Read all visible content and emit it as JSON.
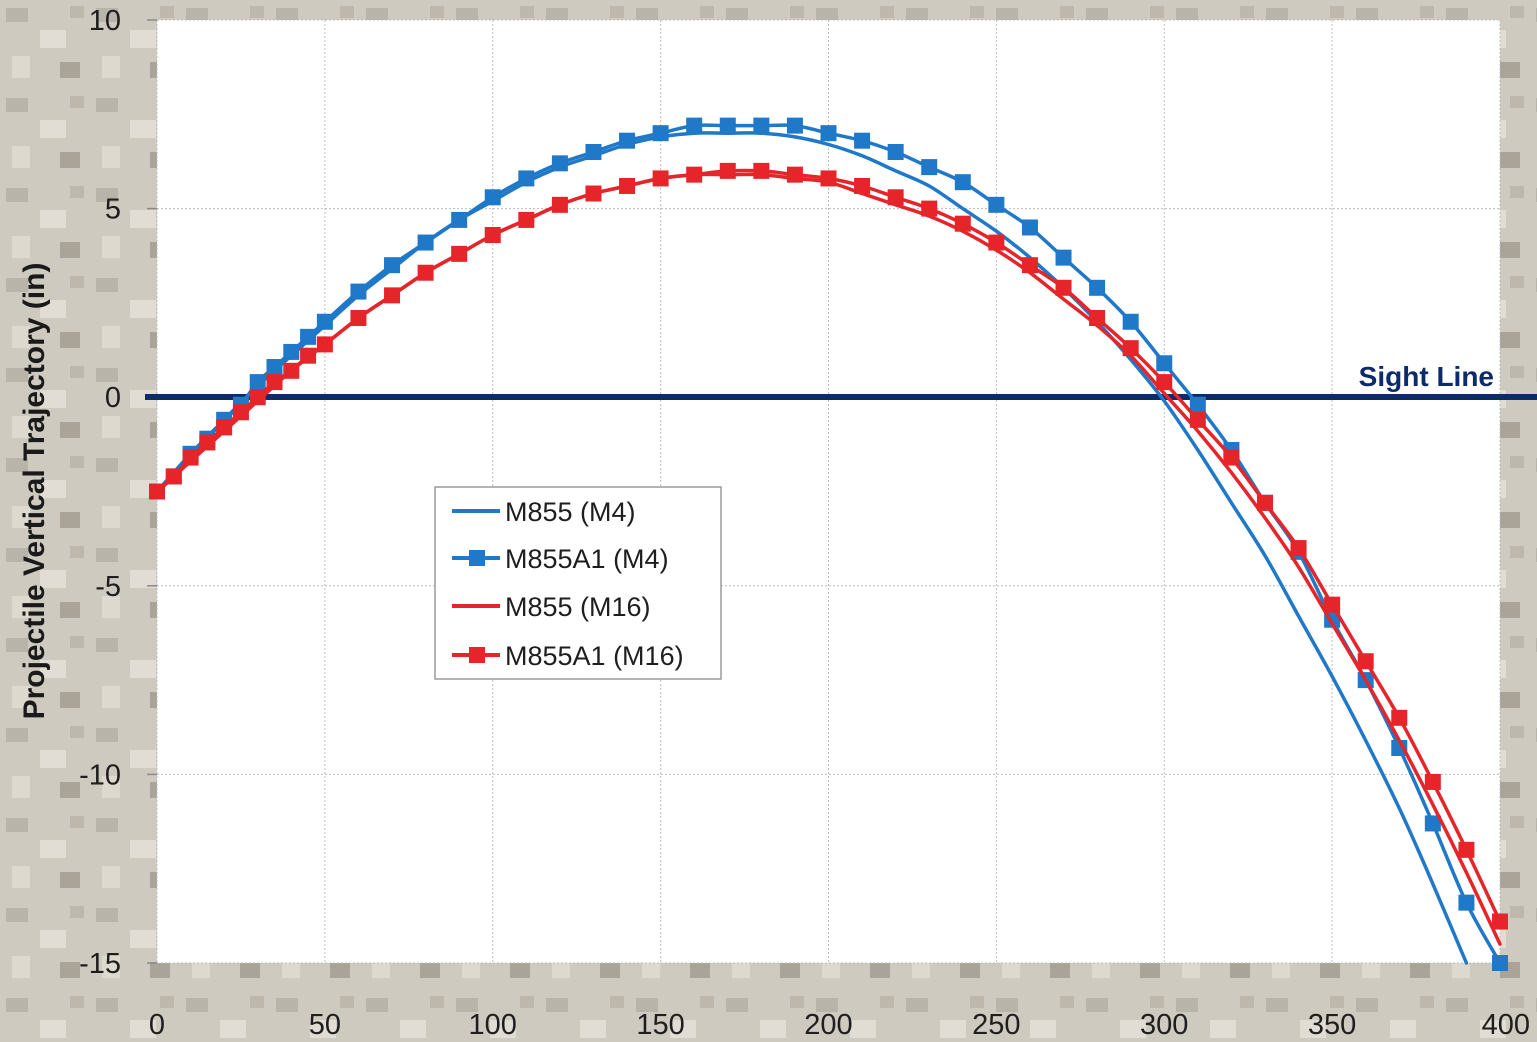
{
  "chart_data": {
    "type": "line",
    "ylabel": "Projectile Vertical Trajectory (in)",
    "xlabel": "",
    "xlim": [
      0,
      400
    ],
    "ylim": [
      -15,
      10
    ],
    "x_ticks": [
      "0",
      "50",
      "100",
      "150",
      "200",
      "250",
      "300",
      "350",
      "400"
    ],
    "y_ticks": [
      "10",
      "5",
      "0",
      "-5",
      "-10",
      "-15"
    ],
    "grid": true,
    "legend_position": "center-left",
    "annotation": {
      "text": "Sight Line",
      "y": 0
    },
    "series": [
      {
        "name": "M855 (M4)",
        "color": "#1f78c8",
        "markers": false,
        "x": [
          0,
          10,
          20,
          30,
          40,
          50,
          60,
          70,
          80,
          90,
          100,
          110,
          120,
          130,
          140,
          150,
          160,
          170,
          180,
          190,
          200,
          210,
          220,
          230,
          240,
          250,
          260,
          270,
          280,
          290,
          300,
          310,
          320,
          330,
          340,
          350,
          360,
          370,
          380,
          390
        ],
        "y": [
          -2.5,
          -1.5,
          -0.6,
          0.3,
          1.1,
          1.9,
          2.7,
          3.4,
          4.1,
          4.7,
          5.2,
          5.7,
          6.1,
          6.4,
          6.7,
          6.9,
          7.0,
          7.0,
          7.0,
          6.9,
          6.7,
          6.4,
          6.0,
          5.6,
          5.0,
          4.4,
          3.7,
          2.9,
          2.0,
          1.0,
          -0.1,
          -1.4,
          -2.8,
          -4.2,
          -5.8,
          -7.4,
          -9.1,
          -10.9,
          -12.9,
          -15.0
        ]
      },
      {
        "name": "M855A1 (M4)",
        "color": "#1f78c8",
        "markers": true,
        "x": [
          0,
          5,
          10,
          15,
          20,
          25,
          30,
          35,
          40,
          45,
          50,
          60,
          70,
          80,
          90,
          100,
          110,
          120,
          130,
          140,
          150,
          160,
          170,
          180,
          190,
          200,
          210,
          220,
          230,
          240,
          250,
          260,
          270,
          280,
          290,
          300,
          310,
          320,
          330,
          340,
          350,
          360,
          370,
          380,
          390,
          400
        ],
        "y": [
          -2.5,
          -2.1,
          -1.5,
          -1.1,
          -0.6,
          -0.2,
          0.4,
          0.8,
          1.2,
          1.6,
          2.0,
          2.8,
          3.5,
          4.1,
          4.7,
          5.3,
          5.8,
          6.2,
          6.5,
          6.8,
          7.0,
          7.2,
          7.2,
          7.2,
          7.2,
          7.0,
          6.8,
          6.5,
          6.1,
          5.7,
          5.1,
          4.5,
          3.7,
          2.9,
          2.0,
          0.9,
          -0.2,
          -1.4,
          -2.8,
          -4.1,
          -5.9,
          -7.5,
          -9.3,
          -11.3,
          -13.4,
          -15.0
        ]
      },
      {
        "name": "M855 (M16)",
        "color": "#e6252a",
        "markers": false,
        "x": [
          0,
          10,
          20,
          30,
          40,
          50,
          60,
          70,
          80,
          90,
          100,
          110,
          120,
          130,
          140,
          150,
          160,
          170,
          180,
          190,
          200,
          210,
          220,
          230,
          240,
          250,
          260,
          270,
          280,
          290,
          300,
          310,
          320,
          330,
          340,
          350,
          360,
          370,
          380,
          390,
          400
        ],
        "y": [
          -2.5,
          -1.7,
          -0.9,
          -0.1,
          0.7,
          1.4,
          2.1,
          2.7,
          3.3,
          3.8,
          4.3,
          4.7,
          5.1,
          5.4,
          5.6,
          5.8,
          5.9,
          5.9,
          5.9,
          5.8,
          5.7,
          5.4,
          5.1,
          4.8,
          4.4,
          3.9,
          3.3,
          2.6,
          1.9,
          1.1,
          0.1,
          -0.9,
          -2.0,
          -3.2,
          -4.5,
          -6.0,
          -7.5,
          -9.1,
          -10.8,
          -12.6,
          -14.5
        ]
      },
      {
        "name": "M855A1 (M16)",
        "color": "#e6252a",
        "markers": true,
        "x": [
          0,
          5,
          10,
          15,
          20,
          25,
          30,
          35,
          40,
          45,
          50,
          60,
          70,
          80,
          90,
          100,
          110,
          120,
          130,
          140,
          150,
          160,
          170,
          180,
          190,
          200,
          210,
          220,
          230,
          240,
          250,
          260,
          270,
          280,
          290,
          300,
          310,
          320,
          330,
          340,
          350,
          360,
          370,
          380,
          390,
          400
        ],
        "y": [
          -2.5,
          -2.1,
          -1.6,
          -1.2,
          -0.8,
          -0.4,
          0.0,
          0.4,
          0.7,
          1.1,
          1.4,
          2.1,
          2.7,
          3.3,
          3.8,
          4.3,
          4.7,
          5.1,
          5.4,
          5.6,
          5.8,
          5.9,
          6.0,
          6.0,
          5.9,
          5.8,
          5.6,
          5.3,
          5.0,
          4.6,
          4.1,
          3.5,
          2.9,
          2.1,
          1.3,
          0.4,
          -0.6,
          -1.6,
          -2.8,
          -4.0,
          -5.5,
          -7.0,
          -8.5,
          -10.2,
          -12.0,
          -13.9
        ]
      }
    ]
  }
}
